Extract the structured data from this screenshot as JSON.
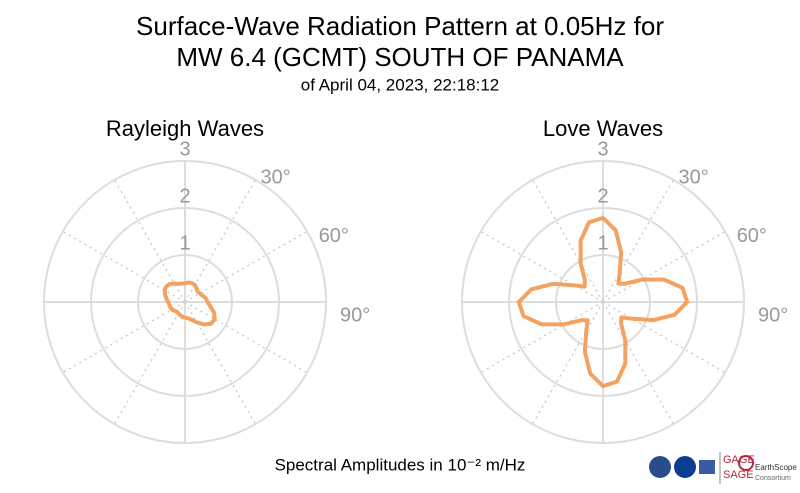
{
  "title": [
    "Surface-Wave Radiation Pattern at 0.05Hz for",
    "MW 6.4 (GCMT) SOUTH OF PANAMA"
  ],
  "subtitle": "of April 04, 2023, 22:18:12",
  "xlabel": "Spectral Amplitudes in 10⁻² m/Hz",
  "logos": [
    "GAGE",
    "SAGE",
    "EarthScope",
    "Consortium"
  ],
  "chart_data": [
    {
      "type": "polar",
      "title": "Rayleigh Waves",
      "color": "#f4a261",
      "rlim": [
        0,
        3
      ],
      "rticks": [
        1,
        2,
        3
      ],
      "thetaticks": [
        {
          "value": 0,
          "label": null
        },
        {
          "value": 30,
          "label": "30°"
        },
        {
          "value": 60,
          "label": "60°"
        },
        {
          "value": 90,
          "label": "90°"
        },
        {
          "value": 120,
          "label": null
        },
        {
          "value": 150,
          "label": null
        },
        {
          "value": 180,
          "label": null
        },
        {
          "value": 210,
          "label": null
        },
        {
          "value": 240,
          "label": null
        },
        {
          "value": 270,
          "label": null
        },
        {
          "value": 300,
          "label": null
        },
        {
          "value": 330,
          "label": null
        }
      ],
      "theta": [
        0,
        10,
        20,
        30,
        40,
        50,
        60,
        70,
        80,
        90,
        100,
        110,
        120,
        130,
        140,
        150,
        160,
        170,
        180,
        190,
        200,
        210,
        220,
        230,
        240,
        250,
        260,
        270,
        280,
        290,
        300,
        310,
        320,
        330,
        340,
        350
      ],
      "values": [
        0.4,
        0.42,
        0.43,
        0.42,
        0.38,
        0.35,
        0.36,
        0.4,
        0.45,
        0.48,
        0.55,
        0.66,
        0.73,
        0.72,
        0.62,
        0.5,
        0.4,
        0.35,
        0.33,
        0.32,
        0.3,
        0.28,
        0.27,
        0.29,
        0.32,
        0.33,
        0.34,
        0.36,
        0.4,
        0.45,
        0.5,
        0.52,
        0.5,
        0.45,
        0.41,
        0.4
      ]
    },
    {
      "type": "polar",
      "title": "Love Waves",
      "color": "#f4a261",
      "rlim": [
        0,
        3
      ],
      "rticks": [
        1,
        2,
        3
      ],
      "thetaticks": [
        {
          "value": 0,
          "label": null
        },
        {
          "value": 30,
          "label": "30°"
        },
        {
          "value": 60,
          "label": "60°"
        },
        {
          "value": 90,
          "label": "90°"
        },
        {
          "value": 120,
          "label": null
        },
        {
          "value": 150,
          "label": null
        },
        {
          "value": 180,
          "label": null
        },
        {
          "value": 210,
          "label": null
        },
        {
          "value": 240,
          "label": null
        },
        {
          "value": 270,
          "label": null
        },
        {
          "value": 300,
          "label": null
        },
        {
          "value": 330,
          "label": null
        }
      ],
      "theta": [
        0,
        10,
        20,
        30,
        40,
        50,
        60,
        70,
        80,
        90,
        100,
        110,
        120,
        130,
        140,
        150,
        160,
        170,
        180,
        190,
        200,
        210,
        220,
        230,
        240,
        250,
        260,
        270,
        280,
        290,
        300,
        310,
        320,
        330,
        340,
        350
      ],
      "values": [
        1.79,
        1.55,
        1.13,
        0.71,
        0.51,
        0.6,
        0.95,
        1.39,
        1.72,
        1.79,
        1.55,
        1.13,
        0.71,
        0.51,
        0.6,
        0.95,
        1.39,
        1.72,
        1.79,
        1.55,
        1.13,
        0.71,
        0.51,
        0.6,
        0.95,
        1.39,
        1.72,
        1.79,
        1.55,
        1.13,
        0.71,
        0.51,
        0.6,
        0.95,
        1.39,
        1.72
      ]
    }
  ]
}
